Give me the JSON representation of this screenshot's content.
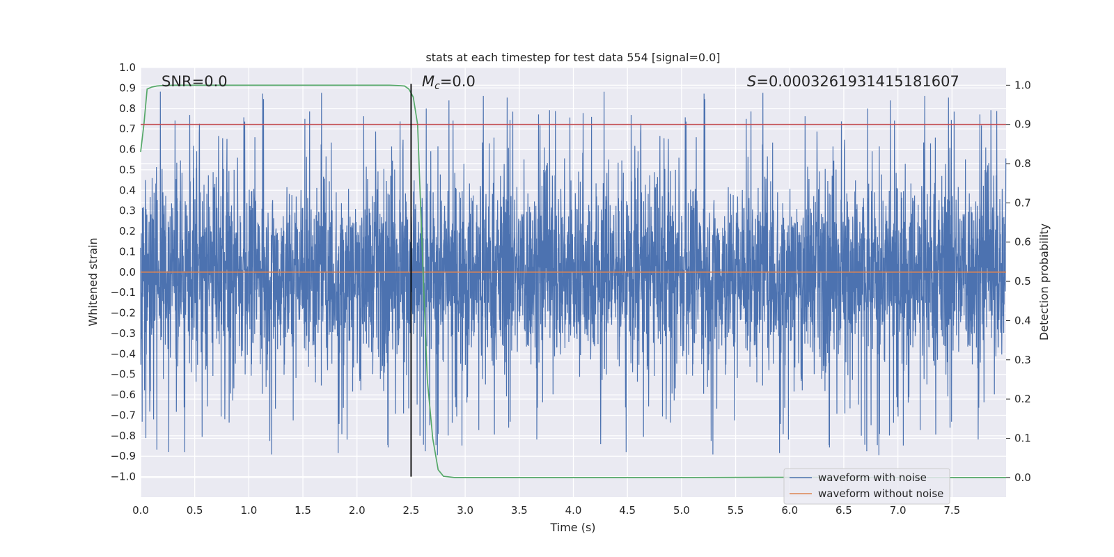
{
  "chart_data": {
    "type": "line",
    "title": "stats at each timestep for test data 554 [signal=0.0]",
    "xlabel": "Time (s)",
    "ylabel": "Whitened strain",
    "y2label": "Detection probability",
    "xlim": [
      0.0,
      8.0
    ],
    "ylim": [
      -1.1,
      1.0
    ],
    "y2lim": [
      -0.05,
      1.045
    ],
    "xticks": [
      "0.0",
      "0.5",
      "1.0",
      "1.5",
      "2.0",
      "2.5",
      "3.0",
      "3.5",
      "4.0",
      "4.5",
      "5.0",
      "5.5",
      "6.0",
      "6.5",
      "7.0",
      "7.5"
    ],
    "yticks": [
      "1.0",
      "0.9",
      "0.8",
      "0.7",
      "0.6",
      "0.5",
      "0.4",
      "0.3",
      "0.2",
      "0.1",
      "0.0",
      "−0.1",
      "−0.2",
      "−0.3",
      "−0.4",
      "−0.5",
      "−0.6",
      "−0.7",
      "−0.8",
      "−0.9",
      "−1.0"
    ],
    "y2ticks": [
      "1.0",
      "0.9",
      "0.8",
      "0.7",
      "0.6",
      "0.5",
      "0.4",
      "0.3",
      "0.2",
      "0.1",
      "0.0"
    ],
    "grid": true,
    "legend_position": "lower right",
    "annotations": {
      "snr_prefix": "SNR=",
      "snr_value": "0.0",
      "mc_symbol": "M",
      "mc_sub": "c",
      "mc_value": "=0.0",
      "s_symbol": "S",
      "s_value": "=0.0003261931415181607"
    },
    "series": [
      {
        "name": "waveform with noise",
        "color": "#4c72b0",
        "axis": "left",
        "style": "dense noise, envelope approx ±0.35 to ±1.0, peaks up to about 0.92 and down to about −1.0"
      },
      {
        "name": "waveform without noise",
        "color": "#dd8452",
        "axis": "left",
        "x": [
          0.0,
          8.0
        ],
        "y": [
          0.0,
          0.0
        ]
      },
      {
        "name": "",
        "color": "#55a868",
        "axis": "right",
        "x": [
          0.0,
          0.03,
          0.06,
          0.1,
          0.15,
          0.2,
          0.3,
          0.5,
          1.0,
          1.5,
          2.0,
          2.2,
          2.3,
          2.38,
          2.44,
          2.48,
          2.52,
          2.56,
          2.6,
          2.65,
          2.7,
          2.75,
          2.8,
          2.9,
          3.0,
          4.0,
          5.0,
          5.8,
          6.2,
          7.0,
          8.0
        ],
        "y": [
          0.83,
          0.9,
          0.99,
          0.995,
          0.998,
          0.999,
          1.0,
          1.0,
          1.0,
          1.0,
          1.0,
          1.0,
          1.0,
          0.999,
          0.998,
          0.99,
          0.97,
          0.9,
          0.6,
          0.25,
          0.1,
          0.02,
          0.003,
          0.0,
          0.0,
          0.0,
          0.0,
          0.0005,
          0.0005,
          0.0,
          0.0
        ]
      },
      {
        "name": "",
        "color": "#c44e52",
        "axis": "right",
        "x": [
          0.0,
          8.0
        ],
        "y": [
          0.9,
          0.9
        ]
      },
      {
        "name": "",
        "color": "#000000",
        "axis": "left",
        "x": [
          2.5,
          2.5
        ],
        "y": [
          -1.0,
          0.92
        ]
      }
    ]
  }
}
